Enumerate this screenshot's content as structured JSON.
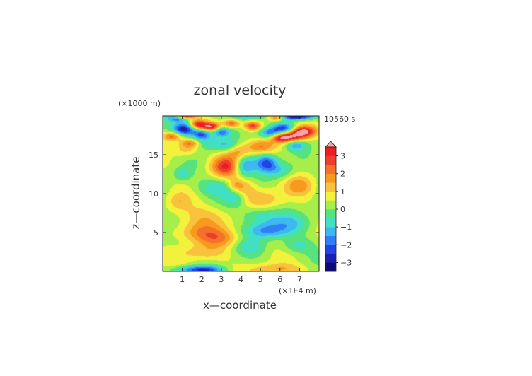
{
  "chart_data": {
    "type": "heatmap",
    "title": "zonal velocity",
    "xlabel": "x—coordinate",
    "ylabel": "z—coordinate",
    "x_unit": "(×1E4 m)",
    "y_unit": "(×1000 m)",
    "time_label": "10560 s",
    "xlim": [
      0,
      8
    ],
    "ylim": [
      0,
      20
    ],
    "x_ticks": [
      1,
      2,
      3,
      4,
      5,
      6,
      7
    ],
    "y_ticks": [
      5,
      10,
      15
    ],
    "colorbar": {
      "ticks": [
        3,
        2,
        1,
        0,
        -1,
        -2,
        -3
      ],
      "range": [
        -3.5,
        3.5
      ],
      "levels": 14,
      "colors": [
        "#0d0d6e",
        "#1a20b0",
        "#2244e6",
        "#2f7ff7",
        "#3db8f0",
        "#41e0c4",
        "#56e27e",
        "#a6ee4a",
        "#f2f23c",
        "#f8c23c",
        "#f89a1e",
        "#f5702a",
        "#f03c2c",
        "#ec1e22",
        "#f4a6a6"
      ]
    },
    "field_features": [
      {
        "x": 1.1,
        "z": 18.3,
        "sx": 0.4,
        "sz": 0.6,
        "v": -3.4
      },
      {
        "x": 2.0,
        "z": 17.6,
        "sx": 0.35,
        "sz": 0.5,
        "v": -2.8
      },
      {
        "x": 3.0,
        "z": 18.0,
        "sx": 0.3,
        "sz": 0.5,
        "v": -2.2
      },
      {
        "x": 5.5,
        "z": 17.8,
        "sx": 0.4,
        "sz": 0.5,
        "v": -2.5
      },
      {
        "x": 6.2,
        "z": 18.4,
        "sx": 0.4,
        "sz": 0.5,
        "v": -2.7
      },
      {
        "x": 0.8,
        "z": 19.7,
        "sx": 0.4,
        "sz": 0.3,
        "v": -2.6
      },
      {
        "x": 6.9,
        "z": 19.9,
        "sx": 0.7,
        "sz": 0.3,
        "v": -3.6
      },
      {
        "x": 4.3,
        "z": 19.9,
        "sx": 0.6,
        "sz": 0.3,
        "v": -1.5
      },
      {
        "x": 1.1,
        "z": 19.9,
        "sx": 0.35,
        "sz": 0.25,
        "v": 3.4
      },
      {
        "x": 1.8,
        "z": 18.9,
        "sx": 0.3,
        "sz": 0.4,
        "v": 2.6
      },
      {
        "x": 2.5,
        "z": 18.6,
        "sx": 0.35,
        "sz": 0.4,
        "v": 3.2
      },
      {
        "x": 3.5,
        "z": 19.0,
        "sx": 0.3,
        "sz": 0.4,
        "v": 2.2
      },
      {
        "x": 4.6,
        "z": 18.7,
        "sx": 0.3,
        "sz": 0.4,
        "v": 2.4
      },
      {
        "x": 5.8,
        "z": 19.8,
        "sx": 0.3,
        "sz": 0.3,
        "v": 2.6
      },
      {
        "x": 6.6,
        "z": 17.3,
        "sx": 0.5,
        "sz": 0.5,
        "v": 2.8
      },
      {
        "x": 7.2,
        "z": 18.0,
        "sx": 0.45,
        "sz": 0.5,
        "v": 3.3
      },
      {
        "x": 6.0,
        "z": 17.2,
        "sx": 0.35,
        "sz": 0.45,
        "v": 2.2
      },
      {
        "x": 0.5,
        "z": 17.4,
        "sx": 0.35,
        "sz": 0.4,
        "v": 2.1
      },
      {
        "x": 1.4,
        "z": 16.5,
        "sx": 0.35,
        "sz": 0.4,
        "v": 1.6
      },
      {
        "x": 3.2,
        "z": 13.5,
        "sx": 0.5,
        "sz": 0.9,
        "v": 2.4
      },
      {
        "x": 3.8,
        "z": 15.5,
        "sx": 0.45,
        "sz": 0.8,
        "v": 1.6
      },
      {
        "x": 5.0,
        "z": 16.0,
        "sx": 0.5,
        "sz": 0.6,
        "v": 1.4
      },
      {
        "x": 1.2,
        "z": 15.6,
        "sx": 0.4,
        "sz": 0.6,
        "v": 1.0
      },
      {
        "x": 4.2,
        "z": 13.6,
        "sx": 0.35,
        "sz": 0.9,
        "v": -2.0
      },
      {
        "x": 5.3,
        "z": 14.0,
        "sx": 0.4,
        "sz": 0.8,
        "v": -2.4
      },
      {
        "x": 6.0,
        "z": 13.0,
        "sx": 0.5,
        "sz": 0.7,
        "v": -1.2
      },
      {
        "x": 3.3,
        "z": 16.2,
        "sx": 0.45,
        "sz": 0.6,
        "v": -1.6
      },
      {
        "x": 2.3,
        "z": 16.4,
        "sx": 0.4,
        "sz": 0.5,
        "v": -1.0
      },
      {
        "x": 6.8,
        "z": 16.3,
        "sx": 0.35,
        "sz": 0.5,
        "v": -1.6
      },
      {
        "x": 1.0,
        "z": 12.5,
        "sx": 0.3,
        "sz": 0.6,
        "v": -1.1
      },
      {
        "x": 2.8,
        "z": 10.8,
        "sx": 0.7,
        "sz": 0.8,
        "v": -1.2
      },
      {
        "x": 3.8,
        "z": 9.5,
        "sx": 0.45,
        "sz": 0.9,
        "v": -1.3
      },
      {
        "x": 3.7,
        "z": 11.0,
        "sx": 0.3,
        "sz": 0.6,
        "v": 1.3
      },
      {
        "x": 4.2,
        "z": 10.5,
        "sx": 0.4,
        "sz": 1.0,
        "v": 1.2
      },
      {
        "x": 5.2,
        "z": 9.2,
        "sx": 0.7,
        "sz": 1.1,
        "v": 1.0
      },
      {
        "x": 7.0,
        "z": 11.0,
        "sx": 0.5,
        "sz": 0.9,
        "v": 1.2
      },
      {
        "x": 0.8,
        "z": 9.0,
        "sx": 0.4,
        "sz": 0.8,
        "v": 0.8
      },
      {
        "x": 2.3,
        "z": 7.0,
        "sx": 0.9,
        "sz": 1.1,
        "v": 1.0
      },
      {
        "x": 1.8,
        "z": 5.0,
        "sx": 0.9,
        "sz": 0.9,
        "v": 1.3
      },
      {
        "x": 3.0,
        "z": 4.2,
        "sx": 0.8,
        "sz": 0.8,
        "v": 1.2
      },
      {
        "x": 5.3,
        "z": 5.2,
        "sx": 0.8,
        "sz": 0.7,
        "v": -1.8
      },
      {
        "x": 5.0,
        "z": 7.2,
        "sx": 0.7,
        "sz": 0.9,
        "v": -1.4
      },
      {
        "x": 6.5,
        "z": 6.2,
        "sx": 0.8,
        "sz": 0.9,
        "v": -1.0
      },
      {
        "x": 4.4,
        "z": 3.2,
        "sx": 0.6,
        "sz": 0.8,
        "v": -0.9
      },
      {
        "x": 6.9,
        "z": 3.3,
        "sx": 0.6,
        "sz": 0.7,
        "v": -1.0
      },
      {
        "x": 2.0,
        "z": 2.4,
        "sx": 0.9,
        "sz": 0.7,
        "v": 0.9
      },
      {
        "x": 1.5,
        "z": 0.2,
        "sx": 0.8,
        "sz": 0.35,
        "v": -1.9
      },
      {
        "x": 2.4,
        "z": 0.2,
        "sx": 0.6,
        "sz": 0.35,
        "v": -1.4
      },
      {
        "x": 5.8,
        "z": 0.3,
        "sx": 1.1,
        "sz": 0.5,
        "v": 1.1
      }
    ]
  }
}
